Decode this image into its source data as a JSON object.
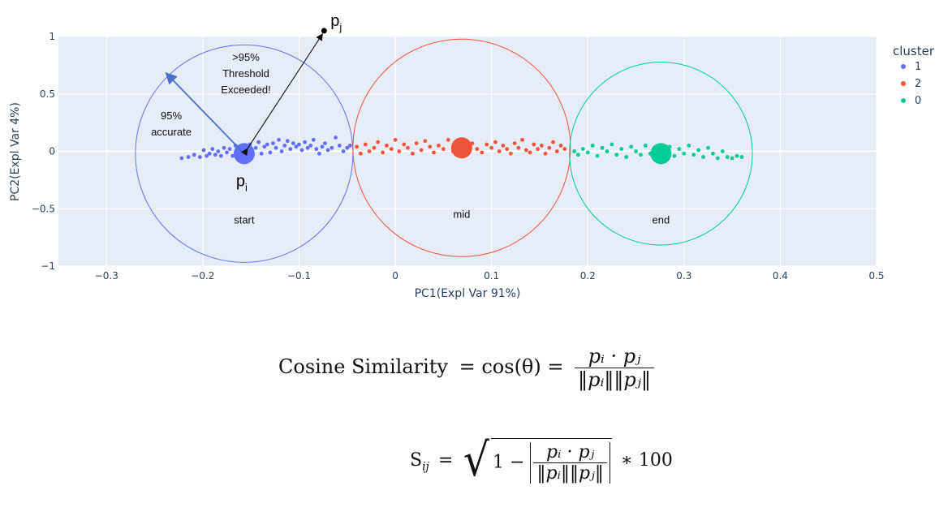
{
  "chart_data": {
    "type": "scatter",
    "xlabel": "PC1(Expl Var 91%)",
    "ylabel": "PC2(Expl Var 4%)",
    "xlim": [
      -0.35,
      0.5
    ],
    "ylim": [
      -1,
      1
    ],
    "xticks": [
      -0.3,
      -0.2,
      -0.1,
      0,
      0.1,
      0.2,
      0.3,
      0.4,
      0.5
    ],
    "xtick_labels": [
      "−0.3",
      "−0.2",
      "−0.1",
      "0",
      "0.1",
      "0.2",
      "0.3",
      "0.4",
      "0.5"
    ],
    "yticks": [
      -1,
      -0.5,
      0,
      0.5,
      1
    ],
    "ytick_labels": [
      "−1",
      "−0.5",
      "0",
      "0.5",
      "1"
    ],
    "grid": true,
    "legend": {
      "title": "cluster",
      "placement": "top-right"
    },
    "series": [
      {
        "name": "1",
        "color": "#636efa",
        "x": [
          -0.222,
          -0.215,
          -0.209,
          -0.203,
          -0.199,
          -0.196,
          -0.193,
          -0.19,
          -0.187,
          -0.184,
          -0.181,
          -0.178,
          -0.175,
          -0.172,
          -0.169,
          -0.166,
          -0.163,
          -0.16,
          -0.157,
          -0.154,
          -0.151,
          -0.148,
          -0.145,
          -0.142,
          -0.139,
          -0.136,
          -0.133,
          -0.13,
          -0.127,
          -0.124,
          -0.121,
          -0.118,
          -0.115,
          -0.112,
          -0.109,
          -0.106,
          -0.103,
          -0.1,
          -0.097,
          -0.094,
          -0.091,
          -0.088,
          -0.085,
          -0.082,
          -0.079,
          -0.076,
          -0.073,
          -0.07,
          -0.066,
          -0.062,
          -0.058,
          -0.054,
          -0.05,
          -0.047
        ],
        "y": [
          -0.06,
          -0.05,
          -0.03,
          -0.05,
          0.01,
          -0.04,
          -0.02,
          0.02,
          -0.03,
          0.0,
          -0.04,
          0.03,
          -0.01,
          0.02,
          -0.04,
          0.05,
          -0.02,
          0.04,
          -0.05,
          0.02,
          0.06,
          -0.03,
          0.03,
          0.08,
          -0.02,
          0.04,
          0.06,
          -0.01,
          0.07,
          0.03,
          0.1,
          0.0,
          0.05,
          0.09,
          0.02,
          0.07,
          0.04,
          0.06,
          0.01,
          0.08,
          0.03,
          0.05,
          0.1,
          0.02,
          -0.02,
          0.04,
          0.07,
          0.01,
          0.03,
          0.12,
          0.05,
          0.0,
          0.03,
          0.05
        ],
        "center": [
          -0.157,
          -0.02
        ]
      },
      {
        "name": "2",
        "color": "#ef553b",
        "x": [
          -0.04,
          -0.036,
          -0.031,
          -0.027,
          -0.022,
          -0.018,
          -0.013,
          -0.009,
          -0.004,
          0.0,
          0.004,
          0.009,
          0.013,
          0.018,
          0.022,
          0.027,
          0.031,
          0.036,
          0.04,
          0.045,
          0.05,
          0.055,
          0.06,
          0.065,
          0.08,
          0.085,
          0.09,
          0.095,
          0.1,
          0.104,
          0.108,
          0.112,
          0.116,
          0.12,
          0.124,
          0.128,
          0.132,
          0.136,
          0.14,
          0.144,
          0.148,
          0.152,
          0.156,
          0.16,
          0.164,
          0.168,
          0.172,
          0.176
        ],
        "y": [
          0.04,
          -0.02,
          0.06,
          0.0,
          0.03,
          0.08,
          -0.01,
          0.05,
          0.02,
          0.1,
          0.0,
          0.06,
          0.03,
          -0.02,
          0.07,
          0.01,
          0.09,
          0.04,
          -0.01,
          0.05,
          0.02,
          0.1,
          0.0,
          0.04,
          0.07,
          0.02,
          -0.01,
          0.06,
          0.03,
          0.08,
          0.0,
          0.05,
          0.02,
          -0.02,
          0.07,
          0.03,
          0.1,
          0.01,
          -0.01,
          0.06,
          0.02,
          0.05,
          -0.02,
          0.03,
          0.08,
          0.0,
          0.05,
          0.02
        ],
        "center": [
          0.069,
          0.03
        ]
      },
      {
        "name": "0",
        "color": "#00cc96",
        "x": [
          0.186,
          0.19,
          0.195,
          0.2,
          0.205,
          0.21,
          0.215,
          0.22,
          0.225,
          0.23,
          0.235,
          0.24,
          0.245,
          0.25,
          0.255,
          0.26,
          0.265,
          0.27,
          0.275,
          0.28,
          0.285,
          0.29,
          0.295,
          0.3,
          0.305,
          0.31,
          0.315,
          0.32,
          0.325,
          0.33,
          0.335,
          0.34,
          0.345,
          0.35,
          0.355,
          0.36
        ],
        "y": [
          0.0,
          -0.03,
          0.02,
          -0.01,
          0.05,
          -0.04,
          0.03,
          0.0,
          0.06,
          -0.03,
          0.02,
          -0.05,
          0.04,
          0.0,
          -0.03,
          0.05,
          -0.02,
          0.03,
          -0.05,
          0.01,
          0.04,
          -0.04,
          0.02,
          -0.02,
          0.05,
          -0.03,
          0.01,
          -0.05,
          0.03,
          -0.02,
          -0.06,
          0.0,
          -0.05,
          -0.06,
          -0.04,
          -0.05
        ],
        "center": [
          0.276,
          -0.02
        ]
      }
    ],
    "cluster_circles": [
      {
        "label": "start",
        "cx": -0.157,
        "cy": -0.02,
        "r_x": 0.113,
        "color": "#636efa"
      },
      {
        "label": "mid",
        "cx": 0.069,
        "cy": 0.03,
        "r_x": 0.113,
        "color": "#ef553b"
      },
      {
        "label": "end",
        "cx": 0.276,
        "cy": -0.02,
        "r_x": 0.095,
        "color": "#00cc96"
      }
    ],
    "annotations": {
      "threshold_text": [
        ">95%",
        "Threshold",
        "Exceeded!"
      ],
      "accurate_text": [
        "95%",
        "accurate"
      ],
      "pi_label": "p",
      "pi_sub": "i",
      "pj_label": "p",
      "pj_sub": "j",
      "pj_point": [
        -0.074,
        1.05
      ],
      "accurate_arrow_tip": [
        -0.238,
        0.68
      ]
    }
  },
  "formulas": {
    "cosine": {
      "lhs": "Cosine Similarity",
      "eq1": "= cos(θ) =",
      "num": "pᵢ · pⱼ",
      "den": "‖pᵢ‖‖pⱼ‖"
    },
    "sij": {
      "lhs": "S",
      "lhs_sub": "ij",
      "eq": "=",
      "one_minus": "1 −",
      "num": "pᵢ · pⱼ",
      "den": "‖pᵢ‖‖pⱼ‖",
      "times": "∗ 100"
    }
  }
}
